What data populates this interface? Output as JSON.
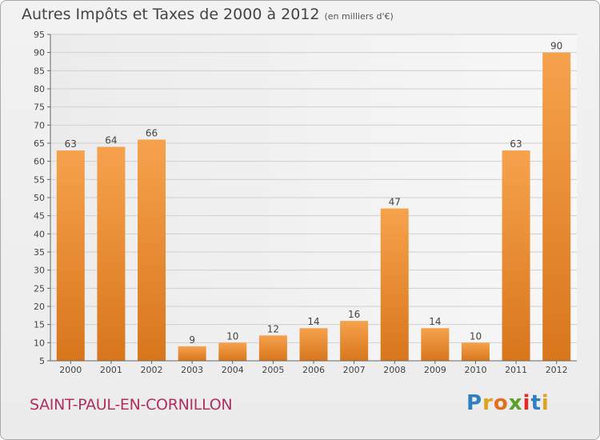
{
  "title": "Autres Impôts et Taxes de 2000 à 2012",
  "subtitle": "(en milliers d'€)",
  "place": "SAINT-PAUL-EN-CORNILLON",
  "logo": [
    "P",
    "r",
    "o",
    "x",
    "i",
    "t",
    "i"
  ],
  "colors": {
    "bar": "#f39a40",
    "bar_dark": "#d97a1e",
    "place": "#b03060",
    "grid": "#cfcfcf"
  },
  "chart_data": {
    "type": "bar",
    "categories": [
      "2000",
      "2001",
      "2002",
      "2003",
      "2004",
      "2005",
      "2006",
      "2007",
      "2008",
      "2009",
      "2010",
      "2011",
      "2012"
    ],
    "values": [
      63,
      64,
      66,
      9,
      10,
      12,
      14,
      16,
      47,
      14,
      10,
      63,
      90
    ],
    "title": "Autres Impôts et Taxes de 2000 à 2012",
    "subtitle": "(en milliers d'€)",
    "xlabel": "",
    "ylabel": "",
    "ylim": [
      5,
      95
    ],
    "yticks": [
      5,
      10,
      15,
      20,
      25,
      30,
      35,
      40,
      45,
      50,
      55,
      60,
      65,
      70,
      75,
      80,
      85,
      90,
      95
    ],
    "grid": true,
    "data_labels": true
  }
}
